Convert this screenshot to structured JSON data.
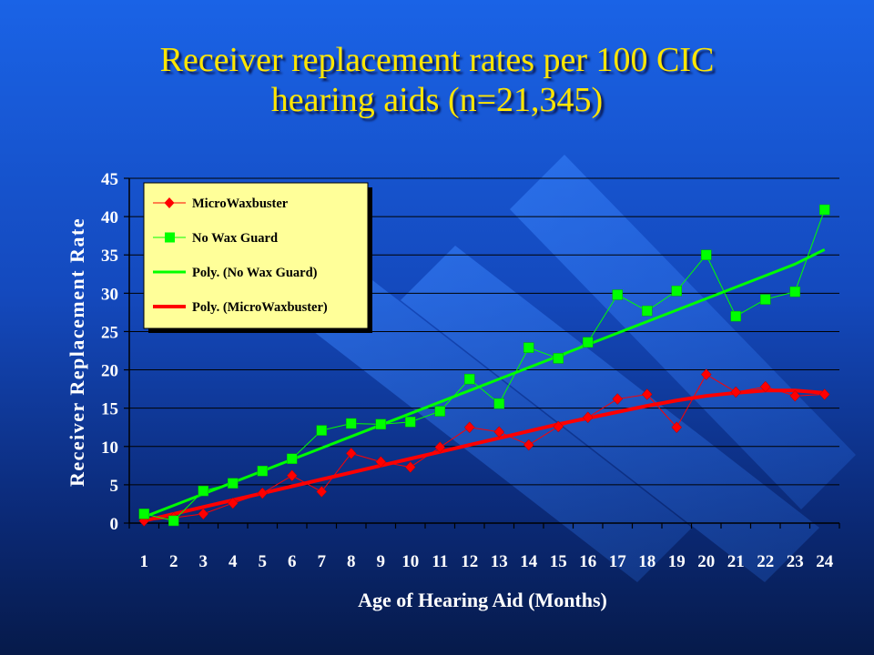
{
  "title_line1": "Receiver replacement rates per 100 CIC",
  "title_line2": "hearing aids (n=21,345)",
  "colors": {
    "background_top": "#1a63e6",
    "background_bottom": "#061a4a",
    "title": "#ffe600",
    "legend_bg": "#ffff99",
    "microwaxbuster": "#ff0000",
    "no_wax_guard": "#00ff00"
  },
  "chart_data": {
    "type": "line",
    "xlabel": "Age of Hearing Aid (Months)",
    "ylabel": "Receiver Replacement Rate",
    "categories": [
      "1",
      "2",
      "3",
      "4",
      "5",
      "6",
      "7",
      "8",
      "9",
      "10",
      "11",
      "12",
      "13",
      "14",
      "15",
      "16",
      "17",
      "18",
      "19",
      "20",
      "21",
      "22",
      "23",
      "24"
    ],
    "ylim": [
      0,
      45
    ],
    "yticks": [
      0,
      5,
      10,
      15,
      20,
      25,
      30,
      35,
      40,
      45
    ],
    "grid": true,
    "legend_position": "top-left",
    "series": [
      {
        "name": "MicroWaxbuster",
        "marker": "diamond",
        "values": [
          0.3,
          0.7,
          1.2,
          2.6,
          3.9,
          6.2,
          4.1,
          9.1,
          8.0,
          7.3,
          9.9,
          12.5,
          11.9,
          10.2,
          12.6,
          13.8,
          16.2,
          16.8,
          12.5,
          19.4,
          17.1,
          17.8,
          16.6,
          16.8
        ]
      },
      {
        "name": "No Wax Guard",
        "marker": "square",
        "values": [
          1.2,
          0.3,
          4.2,
          5.2,
          6.8,
          8.4,
          12.1,
          13.0,
          12.9,
          13.2,
          14.6,
          18.8,
          15.6,
          22.9,
          21.5,
          23.6,
          29.8,
          27.7,
          30.3,
          35.0,
          27.0,
          29.2,
          30.2,
          40.9
        ]
      },
      {
        "name": "Poly. (No Wax Guard)",
        "kind": "trendline",
        "values": [
          0.8,
          2.3,
          3.8,
          5.3,
          6.8,
          8.3,
          9.8,
          11.3,
          12.8,
          14.3,
          15.8,
          17.3,
          18.8,
          20.3,
          21.8,
          23.3,
          24.8,
          26.3,
          27.8,
          29.3,
          30.8,
          32.3,
          33.8,
          35.7
        ]
      },
      {
        "name": "Poly. (MicroWaxbuster)",
        "kind": "trendline",
        "values": [
          0.3,
          1.2,
          2.1,
          3.0,
          3.9,
          4.8,
          5.7,
          6.6,
          7.5,
          8.4,
          9.3,
          10.2,
          11.1,
          12.0,
          12.9,
          13.7,
          14.5,
          15.3,
          16.0,
          16.6,
          17.0,
          17.3,
          17.3,
          17.0
        ]
      }
    ]
  }
}
